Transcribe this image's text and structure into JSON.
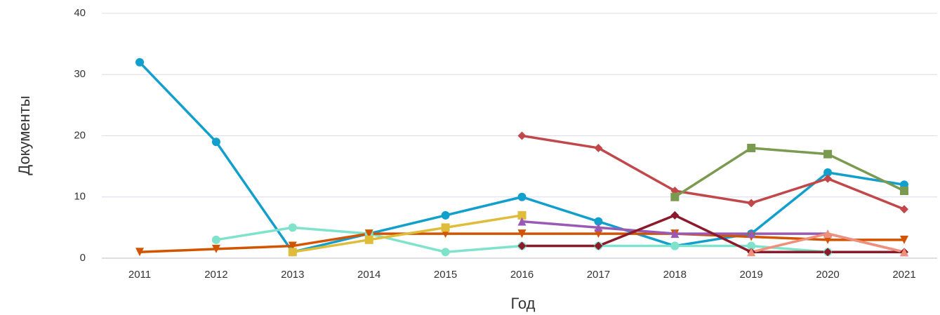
{
  "chart_data": {
    "type": "line",
    "x_label": "Год",
    "y_label": "Документы",
    "categories": [
      "2011",
      "2012",
      "2013",
      "2014",
      "2015",
      "2016",
      "2017",
      "2018",
      "2019",
      "2020",
      "2021"
    ],
    "ylim": [
      0,
      40
    ],
    "yticks": [
      0,
      10,
      20,
      30,
      40
    ],
    "grid": true,
    "series": [
      {
        "color": "#129fcc",
        "marker": "circle",
        "values": [
          32,
          19,
          1,
          4,
          7,
          10,
          6,
          2,
          4,
          14,
          12
        ]
      },
      {
        "color": "#7fe3cb",
        "marker": "circle",
        "values": [
          null,
          3,
          5,
          4,
          1,
          2,
          2,
          2,
          2,
          1,
          null
        ]
      },
      {
        "color": "#d35400",
        "marker": "triangle-down",
        "values": [
          1,
          1.5,
          2,
          4,
          4,
          4,
          4,
          4,
          3.5,
          3,
          3
        ]
      },
      {
        "color": "#dfbd3a",
        "marker": "square",
        "values": [
          null,
          null,
          1,
          3,
          5,
          7,
          null,
          null,
          null,
          null,
          null
        ]
      },
      {
        "color": "#c0474a",
        "marker": "diamond",
        "values": [
          null,
          null,
          null,
          null,
          null,
          20,
          18,
          11,
          9,
          13,
          8
        ]
      },
      {
        "color": "#7a9a50",
        "marker": "square",
        "values": [
          null,
          null,
          null,
          null,
          null,
          null,
          null,
          10,
          18,
          17,
          11
        ]
      },
      {
        "color": "#9b59b6",
        "marker": "triangle",
        "values": [
          null,
          null,
          null,
          null,
          null,
          6,
          5,
          4,
          4,
          4,
          1
        ]
      },
      {
        "color": "#8b1a2b",
        "marker": "diamond",
        "values": [
          null,
          null,
          null,
          null,
          null,
          2,
          2,
          7,
          1,
          1,
          1
        ]
      },
      {
        "color": "#f0907a",
        "marker": "triangle",
        "values": [
          null,
          null,
          null,
          null,
          null,
          null,
          null,
          null,
          1,
          4,
          1
        ]
      }
    ]
  }
}
